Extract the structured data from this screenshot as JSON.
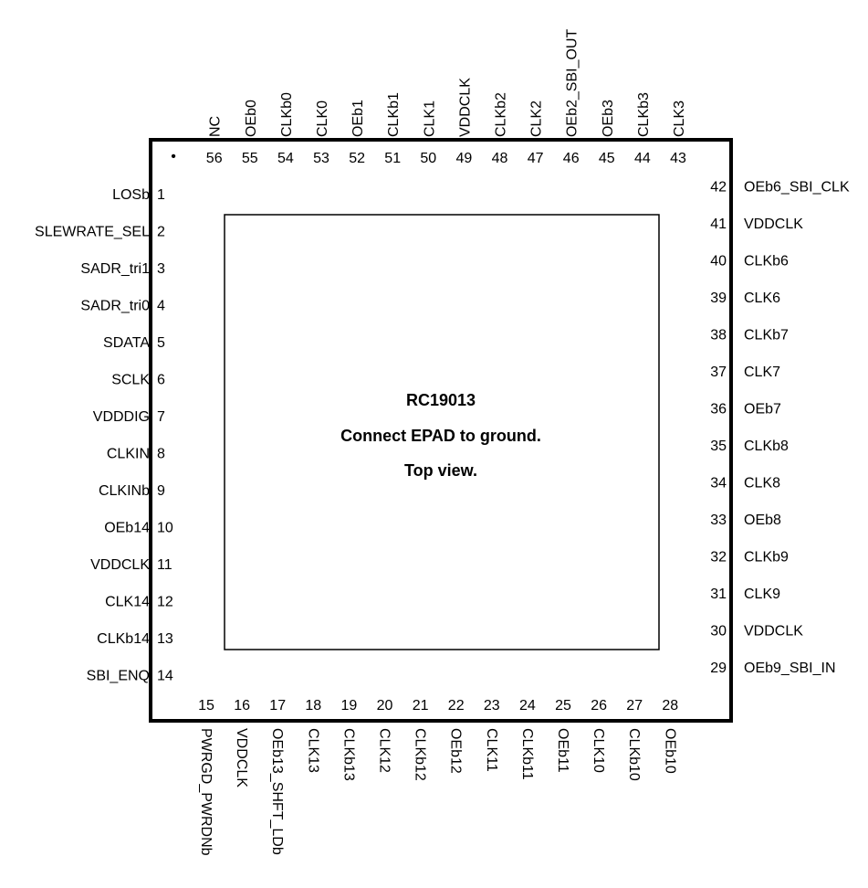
{
  "part_number": "RC19013",
  "note": "Connect EPAD to ground.",
  "view": "Top view.",
  "pin1_marker": "•",
  "pins": {
    "left": [
      {
        "num": "1",
        "name": "LOSb"
      },
      {
        "num": "2",
        "name": "SLEWRATE_SEL"
      },
      {
        "num": "3",
        "name": "SADR_tri1"
      },
      {
        "num": "4",
        "name": "SADR_tri0"
      },
      {
        "num": "5",
        "name": "SDATA"
      },
      {
        "num": "6",
        "name": "SCLK"
      },
      {
        "num": "7",
        "name": "VDDDIG"
      },
      {
        "num": "8",
        "name": "CLKIN"
      },
      {
        "num": "9",
        "name": "CLKINb"
      },
      {
        "num": "10",
        "name": "OEb14"
      },
      {
        "num": "11",
        "name": "VDDCLK"
      },
      {
        "num": "12",
        "name": "CLK14"
      },
      {
        "num": "13",
        "name": "CLKb14"
      },
      {
        "num": "14",
        "name": "SBI_ENQ"
      }
    ],
    "bottom": [
      {
        "num": "15",
        "name": "PWRGD_PWRDNb"
      },
      {
        "num": "16",
        "name": "VDDCLK"
      },
      {
        "num": "17",
        "name": "OEb13_SHFT_LDb"
      },
      {
        "num": "18",
        "name": "CLK13"
      },
      {
        "num": "19",
        "name": "CLKb13"
      },
      {
        "num": "20",
        "name": "CLK12"
      },
      {
        "num": "21",
        "name": "CLKb12"
      },
      {
        "num": "22",
        "name": "OEb12"
      },
      {
        "num": "23",
        "name": "CLK11"
      },
      {
        "num": "24",
        "name": "CLKb11"
      },
      {
        "num": "25",
        "name": "OEb11"
      },
      {
        "num": "26",
        "name": "CLK10"
      },
      {
        "num": "27",
        "name": "CLKb10"
      },
      {
        "num": "28",
        "name": "OEb10"
      }
    ],
    "right": [
      {
        "num": "29",
        "name": "OEb9_SBI_IN"
      },
      {
        "num": "30",
        "name": "VDDCLK"
      },
      {
        "num": "31",
        "name": "CLK9"
      },
      {
        "num": "32",
        "name": "CLKb9"
      },
      {
        "num": "33",
        "name": "OEb8"
      },
      {
        "num": "34",
        "name": "CLK8"
      },
      {
        "num": "35",
        "name": "CLKb8"
      },
      {
        "num": "36",
        "name": "OEb7"
      },
      {
        "num": "37",
        "name": "CLK7"
      },
      {
        "num": "38",
        "name": "CLKb7"
      },
      {
        "num": "39",
        "name": "CLK6"
      },
      {
        "num": "40",
        "name": "CLKb6"
      },
      {
        "num": "41",
        "name": "VDDCLK"
      },
      {
        "num": "42",
        "name": "OEb6_SBI_CLK"
      }
    ],
    "top": [
      {
        "num": "43",
        "name": "CLK3"
      },
      {
        "num": "44",
        "name": "CLKb3"
      },
      {
        "num": "45",
        "name": "OEb3"
      },
      {
        "num": "46",
        "name": "OEb2_SBI_OUT"
      },
      {
        "num": "47",
        "name": "CLK2"
      },
      {
        "num": "48",
        "name": "CLKb2"
      },
      {
        "num": "49",
        "name": "VDDCLK"
      },
      {
        "num": "50",
        "name": "CLK1"
      },
      {
        "num": "51",
        "name": "CLKb1"
      },
      {
        "num": "52",
        "name": "OEb1"
      },
      {
        "num": "53",
        "name": "CLK0"
      },
      {
        "num": "54",
        "name": "CLKb0"
      },
      {
        "num": "55",
        "name": "OEb0"
      },
      {
        "num": "56",
        "name": "NC"
      }
    ]
  }
}
